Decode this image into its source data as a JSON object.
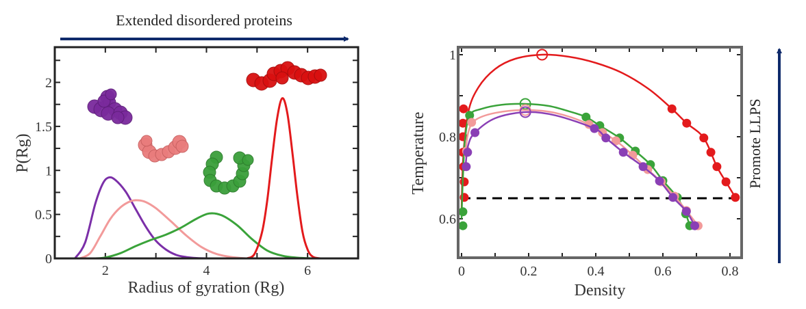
{
  "figure": {
    "top_banner": "Extended disordered proteins",
    "right_banner": "Promote LLPS",
    "arrow_color": "#0f2a6b"
  },
  "chart_data": [
    {
      "type": "line",
      "title": "",
      "xlabel": "Radius of gyration (Rg)",
      "ylabel": "P(Rg)",
      "xlim": [
        1,
        7
      ],
      "ylim": [
        0,
        2.4
      ],
      "xticks": [
        2,
        4,
        6
      ],
      "xticks_minor": [
        3,
        5
      ],
      "yticks": [
        0,
        0.5,
        1,
        1.5,
        2
      ],
      "yticks_minor": [
        0.25,
        0.75,
        1.25,
        1.75,
        2.25
      ],
      "ytick_labels": [
        "0",
        "0.5",
        "1",
        "1.5",
        "2"
      ],
      "xtick_labels": [
        "2",
        "4",
        "6"
      ],
      "grid": false,
      "legend": "none (molecule images colored per series)",
      "series": [
        {
          "name": "purple",
          "color": "#7b2fa8",
          "x": [
            1.4,
            1.6,
            1.8,
            1.95,
            2.07,
            2.2,
            2.4,
            2.6,
            2.8,
            3.0,
            3.2,
            3.4,
            3.6,
            3.8,
            4.0
          ],
          "y": [
            0.0,
            0.18,
            0.62,
            0.85,
            0.92,
            0.89,
            0.76,
            0.56,
            0.36,
            0.2,
            0.1,
            0.04,
            0.015,
            0.004,
            0.0
          ]
        },
        {
          "name": "pink",
          "color": "#f29a9a",
          "x": [
            1.5,
            1.7,
            1.9,
            2.1,
            2.3,
            2.5,
            2.65,
            2.8,
            3.0,
            3.3,
            3.6,
            3.9,
            4.2,
            4.5,
            4.8
          ],
          "y": [
            0.0,
            0.06,
            0.25,
            0.45,
            0.58,
            0.65,
            0.66,
            0.64,
            0.57,
            0.42,
            0.26,
            0.13,
            0.05,
            0.015,
            0.0
          ]
        },
        {
          "name": "green",
          "color": "#3aa33a",
          "x": [
            1.8,
            2.0,
            2.3,
            2.6,
            2.9,
            3.2,
            3.5,
            3.8,
            4.05,
            4.3,
            4.6,
            4.9,
            5.2,
            5.5,
            5.8,
            6.1
          ],
          "y": [
            0.0,
            0.01,
            0.06,
            0.14,
            0.21,
            0.27,
            0.35,
            0.45,
            0.51,
            0.49,
            0.38,
            0.22,
            0.09,
            0.03,
            0.008,
            0.0
          ]
        },
        {
          "name": "red",
          "color": "#e31a1c",
          "x": [
            4.8,
            4.95,
            5.1,
            5.2,
            5.3,
            5.4,
            5.5,
            5.6,
            5.7,
            5.8,
            5.9,
            6.0,
            6.1,
            6.25
          ],
          "y": [
            0.0,
            0.05,
            0.3,
            0.65,
            1.15,
            1.6,
            1.82,
            1.65,
            1.2,
            0.7,
            0.3,
            0.1,
            0.02,
            0.0
          ]
        }
      ],
      "annotations": [
        {
          "type": "molecule-image",
          "series": "purple",
          "shape": "compact globule"
        },
        {
          "type": "molecule-image",
          "series": "pink",
          "shape": "bent chain"
        },
        {
          "type": "molecule-image",
          "series": "green",
          "shape": "U-shaped chain"
        },
        {
          "type": "molecule-image",
          "series": "red",
          "shape": "extended chain"
        }
      ]
    },
    {
      "type": "scatter",
      "title": "",
      "xlabel": "Density",
      "ylabel": "Temperature",
      "xlim": [
        -0.01,
        0.83
      ],
      "ylim": [
        0.51,
        1.02
      ],
      "xticks": [
        0,
        0.2,
        0.4,
        0.6,
        0.8
      ],
      "xtick_labels": [
        "0",
        "0.2",
        "0.4",
        "0.6",
        "0.8"
      ],
      "xticks_minor": [
        0.1,
        0.3,
        0.5,
        0.7
      ],
      "yticks": [
        0.6,
        0.8,
        1.0
      ],
      "ytick_labels": [
        "0.6",
        "0.8",
        "1"
      ],
      "yticks_minor": [
        0.7,
        0.9
      ],
      "grid": false,
      "reference_line": {
        "y": 0.65,
        "style": "dashed",
        "color": "#000000"
      },
      "series": [
        {
          "name": "red",
          "color": "#e31a1c",
          "critical_point": [
            0.24,
            1.0
          ],
          "points": [
            [
              0.006,
              0.868
            ],
            [
              0.004,
              0.833
            ],
            [
              0.004,
              0.8
            ],
            [
              0.004,
              0.762
            ],
            [
              0.006,
              0.727
            ],
            [
              0.008,
              0.69
            ],
            [
              0.008,
              0.652
            ],
            [
              0.627,
              0.868
            ],
            [
              0.671,
              0.833
            ],
            [
              0.722,
              0.797
            ],
            [
              0.743,
              0.762
            ],
            [
              0.761,
              0.727
            ],
            [
              0.788,
              0.69
            ],
            [
              0.816,
              0.652
            ]
          ],
          "curve": [
            [
              0.0,
              0.62
            ],
            [
              0.005,
              0.75
            ],
            [
              0.02,
              0.86
            ],
            [
              0.05,
              0.92
            ],
            [
              0.1,
              0.965
            ],
            [
              0.16,
              0.99
            ],
            [
              0.24,
              1.0
            ],
            [
              0.32,
              0.995
            ],
            [
              0.4,
              0.98
            ],
            [
              0.48,
              0.955
            ],
            [
              0.56,
              0.915
            ],
            [
              0.627,
              0.868
            ],
            [
              0.671,
              0.833
            ],
            [
              0.722,
              0.797
            ],
            [
              0.761,
              0.727
            ],
            [
              0.788,
              0.69
            ],
            [
              0.816,
              0.652
            ]
          ]
        },
        {
          "name": "green",
          "color": "#3aa33a",
          "critical_point": [
            0.19,
            0.88
          ],
          "points": [
            [
              0.024,
              0.852
            ],
            [
              0.004,
              0.617
            ],
            [
              0.004,
              0.583
            ],
            [
              0.371,
              0.848
            ],
            [
              0.412,
              0.827
            ],
            [
              0.471,
              0.797
            ],
            [
              0.518,
              0.765
            ],
            [
              0.563,
              0.732
            ],
            [
              0.6,
              0.693
            ],
            [
              0.643,
              0.652
            ],
            [
              0.668,
              0.612
            ],
            [
              0.68,
              0.583
            ]
          ],
          "curve": [
            [
              0.0,
              0.6
            ],
            [
              0.004,
              0.7
            ],
            [
              0.01,
              0.79
            ],
            [
              0.024,
              0.852
            ],
            [
              0.06,
              0.868
            ],
            [
              0.12,
              0.878
            ],
            [
              0.19,
              0.88
            ],
            [
              0.26,
              0.875
            ],
            [
              0.32,
              0.862
            ],
            [
              0.371,
              0.848
            ],
            [
              0.412,
              0.827
            ],
            [
              0.471,
              0.797
            ],
            [
              0.518,
              0.765
            ],
            [
              0.563,
              0.732
            ],
            [
              0.6,
              0.693
            ],
            [
              0.643,
              0.652
            ],
            [
              0.668,
              0.612
            ],
            [
              0.68,
              0.583
            ]
          ]
        },
        {
          "name": "pink",
          "color": "#f29a9a",
          "critical_point": [
            0.19,
            0.865
          ],
          "points": [
            [
              0.03,
              0.835
            ],
            [
              0.015,
              0.765
            ],
            [
              0.38,
              0.83
            ],
            [
              0.42,
              0.81
            ],
            [
              0.46,
              0.79
            ],
            [
              0.51,
              0.755
            ],
            [
              0.555,
              0.72
            ],
            [
              0.595,
              0.69
            ],
            [
              0.635,
              0.655
            ],
            [
              0.67,
              0.62
            ],
            [
              0.705,
              0.583
            ]
          ],
          "curve": [
            [
              0.01,
              0.75
            ],
            [
              0.02,
              0.81
            ],
            [
              0.04,
              0.84
            ],
            [
              0.1,
              0.858
            ],
            [
              0.19,
              0.865
            ],
            [
              0.28,
              0.858
            ],
            [
              0.38,
              0.83
            ],
            [
              0.46,
              0.79
            ],
            [
              0.51,
              0.755
            ],
            [
              0.555,
              0.72
            ],
            [
              0.595,
              0.69
            ],
            [
              0.635,
              0.655
            ],
            [
              0.67,
              0.62
            ],
            [
              0.705,
              0.583
            ]
          ]
        },
        {
          "name": "purple",
          "color": "#8a3fb5",
          "critical_point": [
            0.19,
            0.86
          ],
          "points": [
            [
              0.04,
              0.81
            ],
            [
              0.018,
              0.762
            ],
            [
              0.014,
              0.727
            ],
            [
              0.396,
              0.82
            ],
            [
              0.43,
              0.797
            ],
            [
              0.482,
              0.762
            ],
            [
              0.541,
              0.727
            ],
            [
              0.59,
              0.692
            ],
            [
              0.63,
              0.652
            ],
            [
              0.67,
              0.618
            ],
            [
              0.695,
              0.583
            ]
          ],
          "curve": [
            [
              0.012,
              0.73
            ],
            [
              0.02,
              0.78
            ],
            [
              0.04,
              0.81
            ],
            [
              0.1,
              0.845
            ],
            [
              0.19,
              0.86
            ],
            [
              0.28,
              0.852
            ],
            [
              0.396,
              0.82
            ],
            [
              0.43,
              0.797
            ],
            [
              0.482,
              0.762
            ],
            [
              0.541,
              0.727
            ],
            [
              0.59,
              0.692
            ],
            [
              0.63,
              0.652
            ],
            [
              0.67,
              0.618
            ],
            [
              0.695,
              0.583
            ]
          ]
        }
      ]
    }
  ]
}
